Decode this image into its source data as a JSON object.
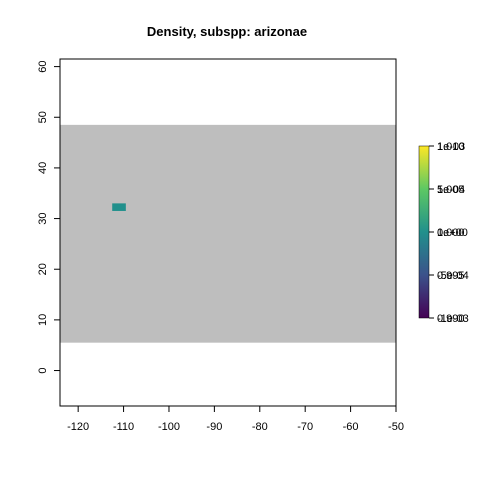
{
  "chart_data": {
    "type": "heatmap",
    "title": "Density, subspp: arizonae",
    "xlabel": "",
    "ylabel": "",
    "xlim": [
      -124,
      -50
    ],
    "ylim": [
      -7,
      61.5
    ],
    "x_ticks": [
      -120,
      -110,
      -100,
      -90,
      -80,
      -70,
      -60,
      -50
    ],
    "y_ticks": [
      0,
      10,
      20,
      30,
      40,
      50,
      60
    ],
    "raster_extent": {
      "x": [
        -124,
        -50
      ],
      "y": [
        5.5,
        48.5
      ]
    },
    "na_color": "#bebebe",
    "cells": [
      {
        "x": [
          -112.5,
          -109.5
        ],
        "y": [
          31.5,
          33.0
        ],
        "value": 1.0,
        "color": "#21908c"
      }
    ],
    "grid": false,
    "legend": {
      "position": "right",
      "palette": "viridis",
      "colors": [
        "#440154",
        "#3b528b",
        "#21908c",
        "#5dc863",
        "#fde725"
      ],
      "tick_labels": [
        [
          "1.010",
          "1e-03"
        ],
        [
          "1.005",
          "5e-04"
        ],
        [
          "1.000",
          "0e+00"
        ],
        [
          "0.995",
          "-5e-04"
        ],
        [
          "0.990",
          "-1e-03"
        ]
      ]
    }
  }
}
